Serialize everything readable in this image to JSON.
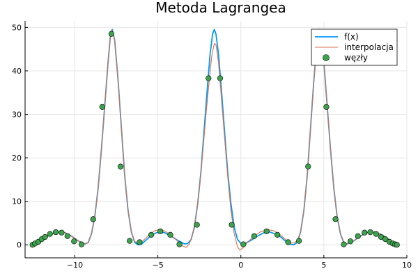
{
  "chart_data": {
    "type": "line",
    "title": "Metoda Lagrangea",
    "xlabel": "",
    "ylabel": "",
    "xlim": [
      -13.0,
      10.0
    ],
    "ylim": [
      -3.0,
      51.5
    ],
    "xticks": [
      -10,
      -5,
      0,
      5,
      10
    ],
    "yticks": [
      0,
      10,
      20,
      30,
      40,
      50
    ],
    "grid": true,
    "legend_position": "top-right",
    "series": [
      {
        "name": "f(x)",
        "kind": "line",
        "color": "#009af9",
        "points": [
          [
            -12.6,
            0.0
          ],
          [
            -12.4,
            0.2
          ],
          [
            -12.2,
            0.6
          ],
          [
            -11.8,
            1.6
          ],
          [
            -11.4,
            2.5
          ],
          [
            -11.0,
            3.0
          ],
          [
            -10.6,
            2.8
          ],
          [
            -10.2,
            2.0
          ],
          [
            -9.8,
            0.9
          ],
          [
            -9.4,
            0.2
          ],
          [
            -9.2,
            0.5
          ],
          [
            -9.0,
            2.5
          ],
          [
            -8.8,
            6.5
          ],
          [
            -8.6,
            13.0
          ],
          [
            -8.4,
            22.0
          ],
          [
            -8.2,
            32.0
          ],
          [
            -8.0,
            42.0
          ],
          [
            -7.85,
            48.5
          ],
          [
            -7.75,
            49.5
          ],
          [
            -7.6,
            47.0
          ],
          [
            -7.4,
            38.0
          ],
          [
            -7.2,
            27.0
          ],
          [
            -7.0,
            16.0
          ],
          [
            -6.8,
            8.0
          ],
          [
            -6.6,
            3.0
          ],
          [
            -6.4,
            0.6
          ],
          [
            -6.2,
            0.0
          ],
          [
            -6.0,
            0.1
          ],
          [
            -5.8,
            0.8
          ],
          [
            -5.5,
            1.8
          ],
          [
            -5.2,
            2.6
          ],
          [
            -4.9,
            3.0
          ],
          [
            -4.6,
            2.8
          ],
          [
            -4.2,
            2.0
          ],
          [
            -3.8,
            1.0
          ],
          [
            -3.4,
            0.2
          ],
          [
            -3.2,
            0.3
          ],
          [
            -3.0,
            1.2
          ],
          [
            -2.8,
            4.0
          ],
          [
            -2.6,
            9.5
          ],
          [
            -2.4,
            17.0
          ],
          [
            -2.2,
            27.0
          ],
          [
            -2.0,
            37.0
          ],
          [
            -1.85,
            44.0
          ],
          [
            -1.7,
            48.5
          ],
          [
            -1.6,
            49.5
          ],
          [
            -1.5,
            48.5
          ],
          [
            -1.35,
            44.0
          ],
          [
            -1.2,
            37.0
          ],
          [
            -1.0,
            27.0
          ],
          [
            -0.8,
            17.0
          ],
          [
            -0.6,
            9.5
          ],
          [
            -0.4,
            4.0
          ],
          [
            -0.2,
            1.2
          ],
          [
            0.0,
            0.3
          ],
          [
            0.2,
            0.2
          ],
          [
            0.6,
            1.0
          ],
          [
            1.0,
            2.0
          ],
          [
            1.4,
            2.8
          ],
          [
            1.7,
            3.0
          ],
          [
            2.0,
            2.6
          ],
          [
            2.4,
            1.8
          ],
          [
            2.7,
            0.8
          ],
          [
            3.0,
            0.1
          ],
          [
            3.2,
            0.0
          ],
          [
            3.4,
            0.6
          ],
          [
            3.6,
            3.0
          ],
          [
            3.8,
            8.0
          ],
          [
            4.0,
            16.0
          ],
          [
            4.2,
            27.0
          ],
          [
            4.4,
            38.0
          ],
          [
            4.6,
            47.0
          ],
          [
            4.75,
            49.5
          ],
          [
            4.85,
            48.5
          ],
          [
            5.0,
            42.0
          ],
          [
            5.2,
            32.0
          ],
          [
            5.4,
            22.0
          ],
          [
            5.6,
            13.0
          ],
          [
            5.8,
            6.5
          ],
          [
            6.0,
            2.5
          ],
          [
            6.2,
            0.5
          ],
          [
            6.4,
            0.2
          ],
          [
            6.8,
            0.9
          ],
          [
            7.2,
            2.0
          ],
          [
            7.6,
            2.8
          ],
          [
            8.0,
            3.0
          ],
          [
            8.4,
            2.5
          ],
          [
            8.8,
            1.6
          ],
          [
            9.0,
            1.0
          ],
          [
            9.2,
            0.6
          ],
          [
            9.4,
            0.0
          ]
        ]
      },
      {
        "name": "interpolacja",
        "kind": "line",
        "color": "#e26f46",
        "points": [
          [
            -12.6,
            0.0
          ],
          [
            -12.4,
            0.2
          ],
          [
            -12.2,
            0.6
          ],
          [
            -11.8,
            1.6
          ],
          [
            -11.4,
            2.5
          ],
          [
            -11.0,
            3.0
          ],
          [
            -10.6,
            2.8
          ],
          [
            -10.2,
            2.0
          ],
          [
            -9.8,
            0.9
          ],
          [
            -9.4,
            0.2
          ],
          [
            -9.2,
            0.5
          ],
          [
            -9.0,
            2.5
          ],
          [
            -8.8,
            6.5
          ],
          [
            -8.6,
            13.0
          ],
          [
            -8.4,
            22.0
          ],
          [
            -8.2,
            32.0
          ],
          [
            -8.0,
            42.0
          ],
          [
            -7.85,
            48.5
          ],
          [
            -7.75,
            49.3
          ],
          [
            -7.6,
            47.0
          ],
          [
            -7.4,
            38.0
          ],
          [
            -7.2,
            27.0
          ],
          [
            -7.0,
            16.0
          ],
          [
            -6.8,
            8.0
          ],
          [
            -6.6,
            3.0
          ],
          [
            -6.4,
            0.8
          ],
          [
            -6.2,
            0.3
          ],
          [
            -6.0,
            0.6
          ],
          [
            -5.8,
            1.3
          ],
          [
            -5.5,
            2.4
          ],
          [
            -5.2,
            3.2
          ],
          [
            -4.9,
            3.5
          ],
          [
            -4.6,
            3.2
          ],
          [
            -4.2,
            2.2
          ],
          [
            -3.8,
            0.8
          ],
          [
            -3.5,
            -0.3
          ],
          [
            -3.3,
            -0.6
          ],
          [
            -3.1,
            0.2
          ],
          [
            -2.9,
            2.5
          ],
          [
            -2.7,
            6.5
          ],
          [
            -2.5,
            13.0
          ],
          [
            -2.3,
            21.0
          ],
          [
            -2.1,
            30.0
          ],
          [
            -1.9,
            38.0
          ],
          [
            -1.75,
            43.5
          ],
          [
            -1.6,
            46.3
          ],
          [
            -1.5,
            46.0
          ],
          [
            -1.35,
            42.0
          ],
          [
            -1.2,
            35.0
          ],
          [
            -1.0,
            25.5
          ],
          [
            -0.8,
            16.0
          ],
          [
            -0.6,
            8.0
          ],
          [
            -0.4,
            2.5
          ],
          [
            -0.2,
            -0.5
          ],
          [
            -0.05,
            -1.2
          ],
          [
            0.1,
            -0.8
          ],
          [
            0.4,
            0.6
          ],
          [
            0.8,
            2.0
          ],
          [
            1.2,
            3.0
          ],
          [
            1.6,
            3.5
          ],
          [
            2.0,
            3.2
          ],
          [
            2.4,
            2.2
          ],
          [
            2.8,
            0.9
          ],
          [
            3.0,
            0.4
          ],
          [
            3.2,
            0.4
          ],
          [
            3.4,
            1.0
          ],
          [
            3.6,
            3.0
          ],
          [
            3.8,
            8.0
          ],
          [
            4.0,
            16.0
          ],
          [
            4.2,
            27.0
          ],
          [
            4.4,
            38.0
          ],
          [
            4.6,
            47.0
          ],
          [
            4.75,
            49.3
          ],
          [
            4.85,
            48.5
          ],
          [
            5.0,
            42.0
          ],
          [
            5.2,
            32.0
          ],
          [
            5.4,
            22.0
          ],
          [
            5.6,
            13.0
          ],
          [
            5.8,
            6.5
          ],
          [
            6.0,
            2.5
          ],
          [
            6.2,
            0.5
          ],
          [
            6.4,
            0.2
          ],
          [
            6.8,
            0.9
          ],
          [
            7.2,
            2.0
          ],
          [
            7.6,
            2.8
          ],
          [
            8.0,
            3.0
          ],
          [
            8.4,
            2.5
          ],
          [
            8.8,
            1.6
          ],
          [
            9.0,
            1.0
          ],
          [
            9.2,
            0.6
          ],
          [
            9.4,
            0.0
          ]
        ]
      },
      {
        "name": "węzły",
        "kind": "scatter",
        "color": "#3da44d",
        "points": [
          [
            -12.55,
            0.0
          ],
          [
            -12.4,
            0.3
          ],
          [
            -12.2,
            0.7
          ],
          [
            -12.0,
            1.3
          ],
          [
            -11.8,
            1.8
          ],
          [
            -11.5,
            2.5
          ],
          [
            -11.15,
            2.9
          ],
          [
            -10.8,
            2.8
          ],
          [
            -10.45,
            2.0
          ],
          [
            -10.05,
            0.8
          ],
          [
            -9.6,
            0.1
          ],
          [
            -8.9,
            5.9
          ],
          [
            -8.35,
            31.7
          ],
          [
            -7.8,
            48.5
          ],
          [
            -7.25,
            18.0
          ],
          [
            -6.7,
            0.9
          ],
          [
            -6.1,
            0.6
          ],
          [
            -5.4,
            2.3
          ],
          [
            -4.85,
            3.1
          ],
          [
            -4.25,
            2.3
          ],
          [
            -3.7,
            0.1
          ],
          [
            -2.65,
            4.6
          ],
          [
            -1.95,
            38.3
          ],
          [
            -1.25,
            38.3
          ],
          [
            -0.55,
            4.6
          ],
          [
            0.15,
            0.1
          ],
          [
            0.8,
            2.0
          ],
          [
            1.55,
            3.1
          ],
          [
            2.2,
            2.3
          ],
          [
            2.85,
            0.6
          ],
          [
            3.5,
            0.9
          ],
          [
            4.05,
            18.0
          ],
          [
            4.75,
            49.0
          ],
          [
            5.15,
            31.7
          ],
          [
            5.7,
            5.9
          ],
          [
            6.2,
            0.1
          ],
          [
            6.6,
            0.8
          ],
          [
            7.05,
            2.0
          ],
          [
            7.45,
            2.8
          ],
          [
            7.8,
            2.9
          ],
          [
            8.15,
            2.5
          ],
          [
            8.45,
            1.8
          ],
          [
            8.7,
            1.3
          ],
          [
            8.95,
            0.7
          ],
          [
            9.15,
            0.3
          ],
          [
            9.3,
            0.1
          ],
          [
            9.4,
            0.0
          ]
        ]
      }
    ]
  }
}
